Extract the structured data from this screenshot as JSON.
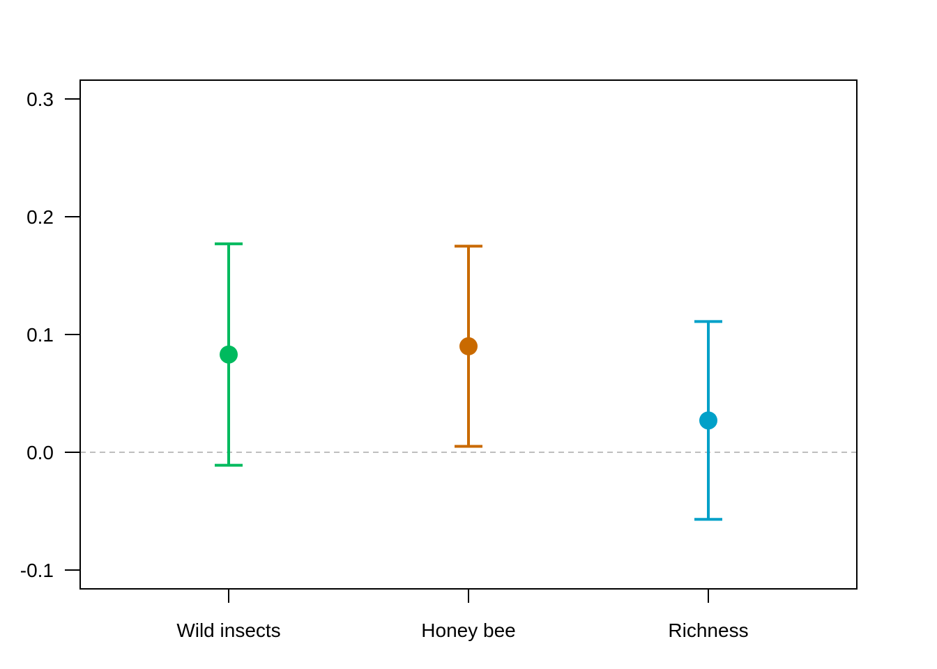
{
  "chart_data": {
    "type": "scatter",
    "title": "",
    "xlabel": "",
    "ylabel": "",
    "categories": [
      "Wild insects",
      "Honey bee",
      "Richness"
    ],
    "points": [
      {
        "category": "Wild insects",
        "estimate": 0.083,
        "lower": -0.011,
        "upper": 0.177,
        "color": "#00BA5E"
      },
      {
        "category": "Honey bee",
        "estimate": 0.09,
        "lower": 0.005,
        "upper": 0.175,
        "color": "#C96A00"
      },
      {
        "category": "Richness",
        "estimate": 0.027,
        "lower": -0.057,
        "upper": 0.111,
        "color": "#00A0C8"
      }
    ],
    "ylim": [
      -0.116,
      0.316
    ],
    "yticks": [
      -0.1,
      0.0,
      0.1,
      0.2,
      0.3
    ],
    "ytick_labels": [
      "-0.1",
      "0.0",
      "0.1",
      "0.2",
      "0.3"
    ],
    "reference_line": {
      "y": 0,
      "style": "dashed",
      "color": "#BEBEBE"
    },
    "grid": false,
    "legend": "none"
  }
}
